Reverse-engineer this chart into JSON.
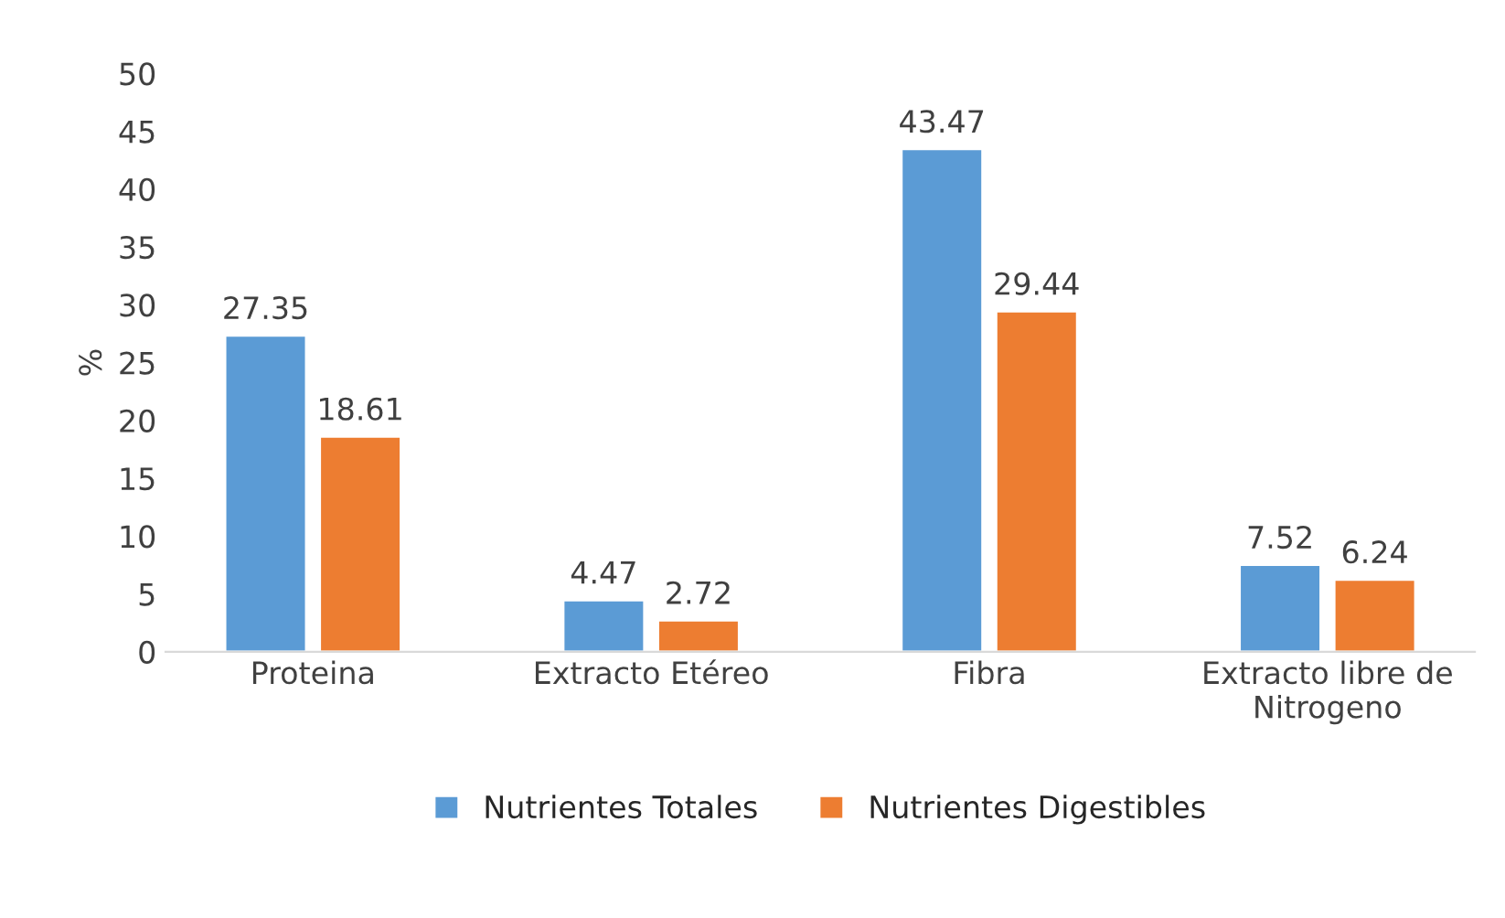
{
  "chart_data": {
    "type": "bar",
    "ylabel": "%",
    "categories": [
      "Proteina",
      "Extracto Etéreo",
      "Fibra",
      "Extracto libre de\nNitrogeno"
    ],
    "series": [
      {
        "name": "Nutrientes Totales",
        "color": "#5b9bd5",
        "values": [
          27.35,
          4.47,
          43.47,
          7.52
        ]
      },
      {
        "name": "Nutrientes Digestibles",
        "color": "#ed7d31",
        "values": [
          18.61,
          2.72,
          29.44,
          6.24
        ]
      }
    ],
    "ylim": [
      0,
      50
    ],
    "yticks": [
      0,
      5,
      10,
      15,
      20,
      25,
      30,
      35,
      40,
      45,
      50
    ],
    "data_labels": true,
    "legend": "bottom",
    "grid": false
  }
}
